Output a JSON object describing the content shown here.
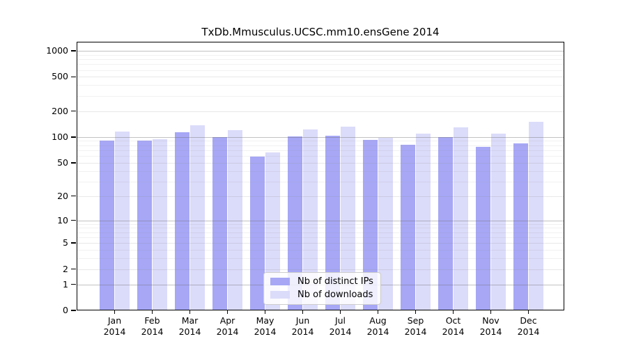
{
  "chart_data": {
    "type": "bar",
    "title": "TxDb.Mmusculus.UCSC.mm10.ensGene 2014",
    "yscale": "log1p",
    "ylim": [
      0,
      1000
    ],
    "y_ticks": [
      0,
      1,
      2,
      5,
      10,
      20,
      50,
      100,
      200,
      500,
      1000
    ],
    "grid": "horizontal log gridlines, majors at 1/10/100/1000",
    "legend_position": "inside-bottom-center",
    "categories": [
      "Jan",
      "Feb",
      "Mar",
      "Apr",
      "May",
      "Jun",
      "Jul",
      "Aug",
      "Sep",
      "Oct",
      "Nov",
      "Dec"
    ],
    "category_year": "2014",
    "series": [
      {
        "name": "Nb of distinct IPs",
        "color": "#a7a7f6",
        "values": [
          91,
          90,
          114,
          100,
          59,
          101,
          103,
          92,
          81,
          100,
          77,
          85
        ]
      },
      {
        "name": "Nb of downloads",
        "color": "#dbdbfa",
        "values": [
          115,
          94,
          138,
          120,
          66,
          123,
          132,
          98,
          109,
          130,
          110,
          150
        ]
      }
    ]
  },
  "colors": {
    "axis": "#000000",
    "background": "#ffffff",
    "legend_border": "#cccccc"
  }
}
